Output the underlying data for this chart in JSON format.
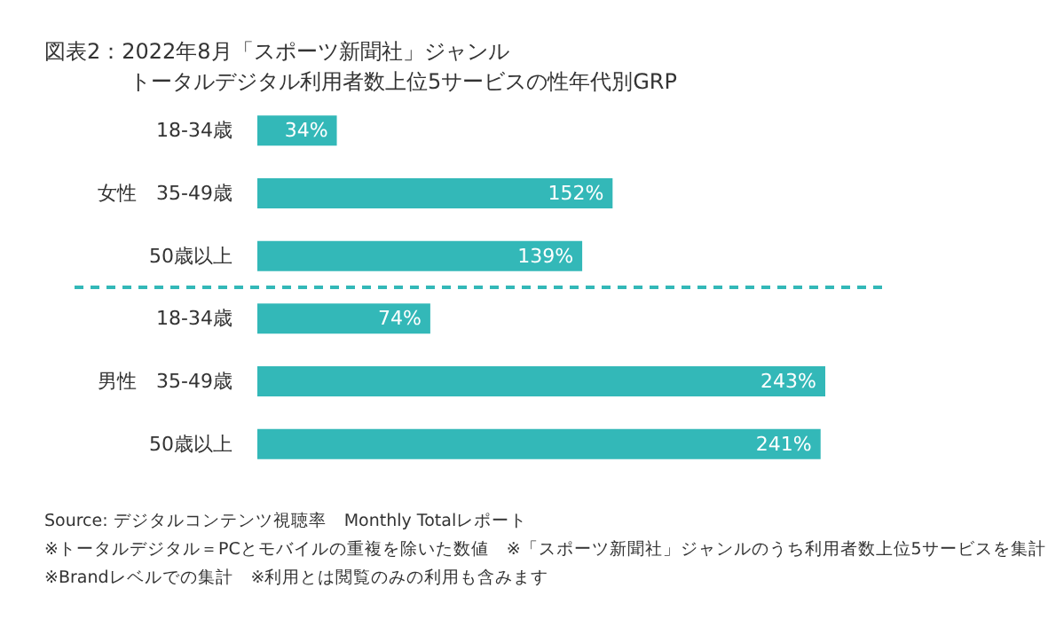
{
  "chart_data": {
    "type": "bar",
    "orientation": "horizontal",
    "title": "図表2：2022年8月「スポーツ新聞社」ジャンル",
    "subtitle": "トータルデジタル利用者数上位5サービスの性年代別GRP",
    "categories": [
      "18-34歳",
      "女性　35-49歳",
      "50歳以上",
      "18-34歳",
      "男性　35-49歳",
      "50歳以上"
    ],
    "values": [
      34,
      152,
      139,
      74,
      243,
      241
    ],
    "value_labels": [
      "34%",
      "152%",
      "139%",
      "74%",
      "243%",
      "241%"
    ],
    "color": "#33b8b8",
    "grid": false,
    "annotations": [
      "Source: デジタルコンテンツ視聴率　Monthly Totalレポート",
      "※トータルデジタル＝PCとモバイルの重複を除いた数値　※「スポーツ新聞社」ジャンルのうち利用者数上位5サービスを集計",
      "※Brandレベルでの集計　※利用とは閲覧のみの利用も含みます"
    ]
  }
}
